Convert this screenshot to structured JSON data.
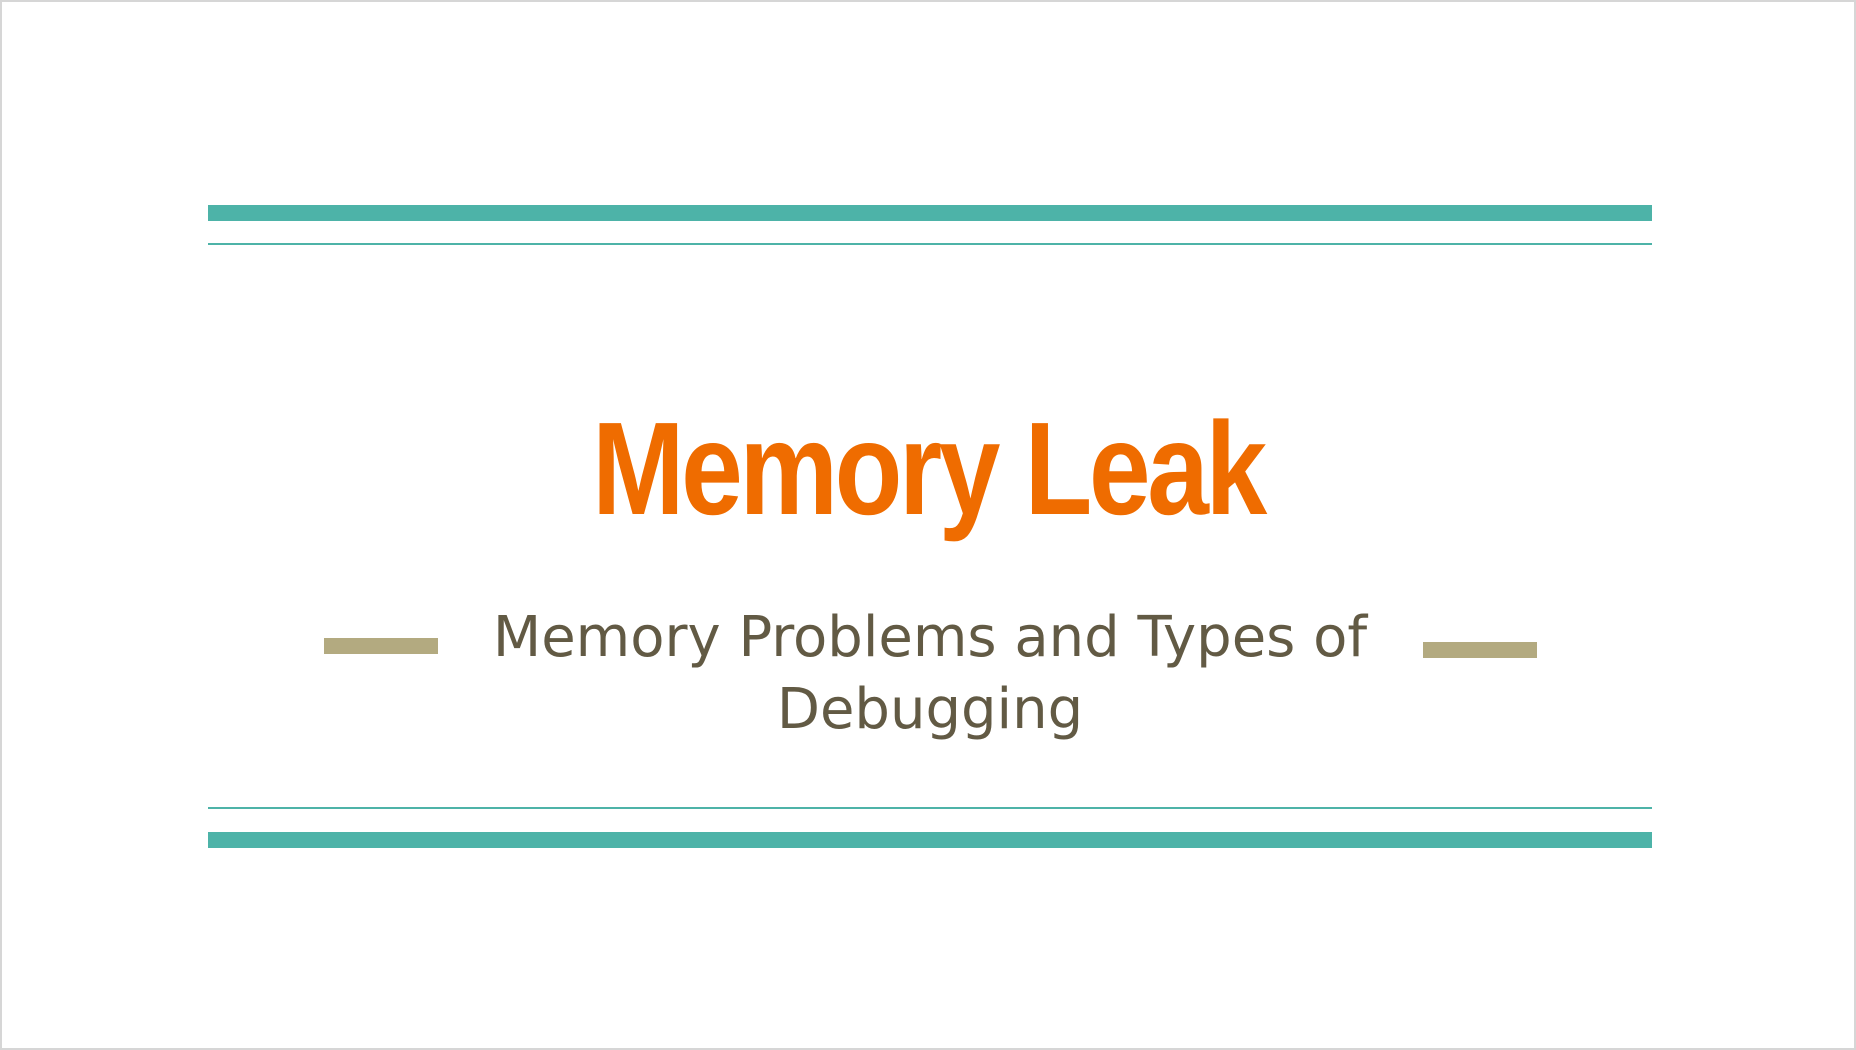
{
  "slide": {
    "title": "Memory Leak",
    "subtitle_line1": "Memory Problems and Types of",
    "subtitle_line2": "Debugging"
  },
  "colors": {
    "title": "#ef6c00",
    "subtitle": "#625a44",
    "rules": "#4db3a8",
    "dashes": "#b3aa80"
  }
}
